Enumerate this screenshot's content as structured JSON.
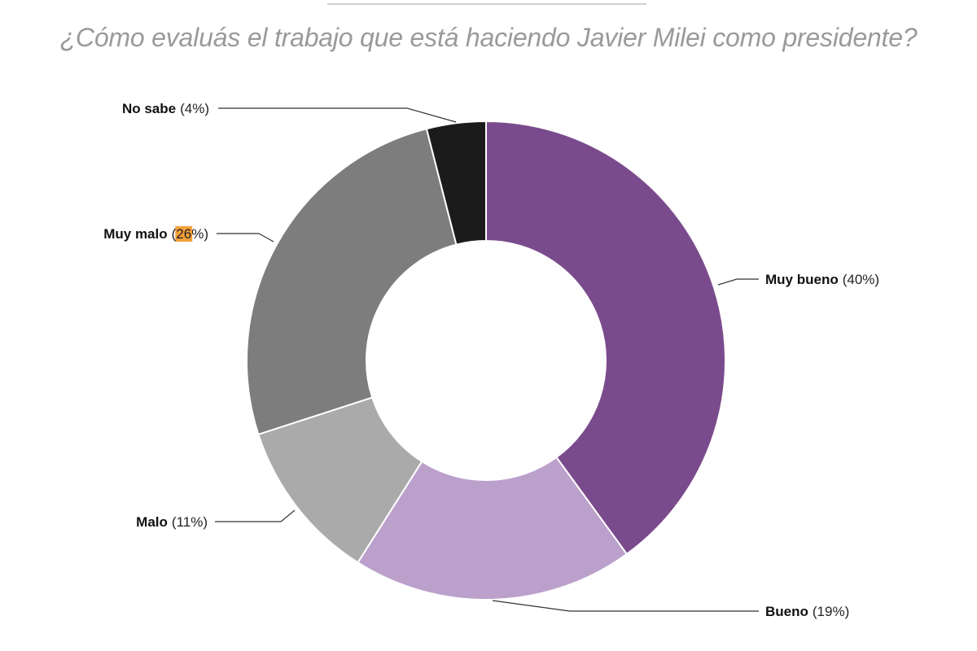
{
  "chart_data": {
    "type": "pie",
    "donut": true,
    "title": "¿Cómo evaluás el trabajo que está haciendo Javier Milei como presidente?",
    "slices": [
      {
        "name": "Muy bueno",
        "value": 40,
        "pct_text": "(40%)",
        "color": "#7a4b8c"
      },
      {
        "name": "Bueno",
        "value": 19,
        "pct_text": "(19%)",
        "color": "#bba0cc"
      },
      {
        "name": "Malo",
        "value": 11,
        "pct_text": "(11%)",
        "color": "#aaaaaa"
      },
      {
        "name": "Muy malo",
        "value": 26,
        "pct_open": "(",
        "pct_num": "26",
        "pct_close": "%)",
        "color": "#7d7d7d",
        "highlight_color": "#f5a03a"
      },
      {
        "name": "No sabe",
        "value": 4,
        "pct_text": "(4%)",
        "color": "#1b1b1b"
      }
    ],
    "start": "top",
    "direction": "clockwise",
    "legend": "none"
  }
}
